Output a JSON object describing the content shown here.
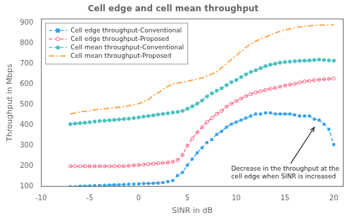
{
  "chart_data": {
    "type": "line",
    "title": "Cell edge and cell mean throughput",
    "x_label": "SINR in dB",
    "y_label": "Throughput in Mbps",
    "xlim": [
      -10,
      21
    ],
    "ylim": [
      100,
      920
    ],
    "xticks": [
      -10,
      -5,
      0,
      5,
      10,
      15,
      20
    ],
    "yticks": [
      100,
      200,
      300,
      400,
      500,
      600,
      700,
      800,
      900
    ],
    "grid": false,
    "legend": "upper left",
    "x": [
      -7,
      -6.5,
      -6,
      -5.5,
      -5,
      -4.5,
      -4,
      -3.5,
      -3,
      -2.5,
      -2,
      -1.5,
      -1,
      -0.5,
      0,
      0.5,
      1,
      1.5,
      2,
      2.5,
      3,
      3.5,
      4,
      4.5,
      5,
      5.5,
      6,
      6.5,
      7,
      7.5,
      8,
      8.5,
      9,
      9.5,
      10,
      10.5,
      11,
      11.5,
      12,
      12.5,
      13,
      13.5,
      14,
      14.5,
      15,
      15.5,
      16,
      16.5,
      17,
      17.5,
      18,
      18.5,
      19,
      19.5,
      20
    ],
    "series": [
      {
        "name": "Cell edge throughput-Conventional",
        "marker": "square",
        "line_style": "dashed",
        "values": [
          100,
          100,
          102,
          103,
          104,
          105,
          106,
          107,
          108,
          109,
          110,
          111,
          112,
          113,
          114,
          115,
          116,
          117,
          118,
          120,
          125,
          130,
          155,
          170,
          205,
          235,
          265,
          290,
          315,
          330,
          355,
          370,
          390,
          405,
          415,
          425,
          435,
          445,
          455,
          455,
          460,
          460,
          455,
          455,
          455,
          455,
          450,
          445,
          445,
          445,
          430,
          425,
          405,
          380,
          305
        ]
      },
      {
        "name": "Cell edge throughput-Proposed",
        "marker": "open_circle",
        "line_style": "dashed",
        "values": [
          200,
          200,
          200,
          200,
          200,
          200,
          200,
          200,
          200,
          200,
          200,
          200,
          202,
          204,
          206,
          208,
          210,
          212,
          214,
          216,
          218,
          222,
          230,
          255,
          300,
          335,
          365,
          390,
          415,
          435,
          455,
          470,
          490,
          505,
          518,
          530,
          542,
          552,
          560,
          565,
          572,
          578,
          582,
          588,
          594,
          598,
          602,
          608,
          614,
          616,
          620,
          622,
          624,
          626,
          628
        ]
      },
      {
        "name": "Cell mean throughput-Conventional",
        "marker": "circle",
        "line_style": "dashed",
        "values": [
          405,
          408,
          410,
          412,
          415,
          418,
          420,
          422,
          424,
          426,
          428,
          430,
          432,
          435,
          438,
          442,
          445,
          448,
          452,
          455,
          458,
          462,
          465,
          470,
          480,
          492,
          505,
          520,
          540,
          555,
          568,
          580,
          595,
          610,
          620,
          635,
          648,
          660,
          668,
          678,
          688,
          695,
          700,
          705,
          708,
          710,
          712,
          714,
          715,
          716,
          718,
          720,
          718,
          716,
          715
        ]
      },
      {
        "name": "Cell mean throughput-Proposed",
        "marker": "none",
        "line_style": "dashdot",
        "values": [
          455,
          460,
          465,
          468,
          470,
          475,
          478,
          480,
          483,
          485,
          488,
          490,
          495,
          500,
          505,
          515,
          525,
          545,
          558,
          575,
          590,
          600,
          605,
          610,
          615,
          620,
          625,
          630,
          640,
          650,
          660,
          680,
          700,
          720,
          740,
          760,
          780,
          795,
          810,
          820,
          830,
          840,
          850,
          858,
          865,
          870,
          875,
          880,
          883,
          885,
          887,
          888,
          889,
          889,
          890
        ]
      }
    ],
    "annotations": [
      {
        "text": "Decrease in the throughput at the\ncell edge when SINR is increased",
        "x": 18.0,
        "y": 390
      }
    ]
  }
}
